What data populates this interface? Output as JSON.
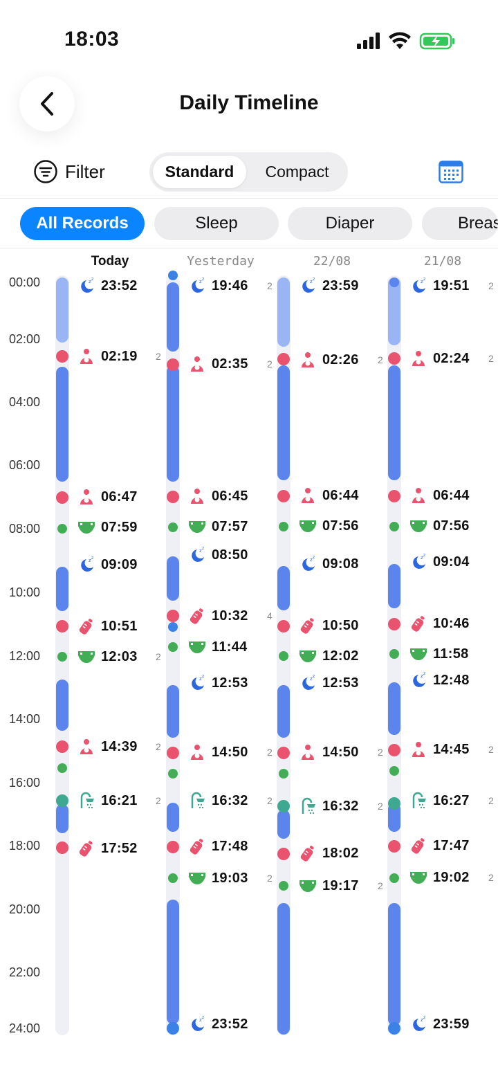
{
  "status_bar": {
    "time": "18:03"
  },
  "header": {
    "title": "Daily Timeline"
  },
  "toolbar": {
    "filter_label": "Filter",
    "view_standard": "Standard",
    "view_compact": "Compact"
  },
  "chips": [
    "All Records",
    "Sleep",
    "Diaper",
    "Breas"
  ],
  "hours": [
    "00:00",
    "02:00",
    "04:00",
    "06:00",
    "08:00",
    "10:00",
    "12:00",
    "14:00",
    "16:00",
    "18:00",
    "20:00",
    "22:00",
    "24:00"
  ],
  "days": [
    "Today",
    "Yesterday",
    "22/08",
    "21/08"
  ],
  "colors": {
    "sleep": "#5b85ec",
    "sleep_light": "#9ab5f5",
    "feeding": "#e9536e",
    "diaper": "#43ad55",
    "bath": "#3fa890",
    "accent": "#0a84ff"
  },
  "timeline": {
    "today": [
      {
        "time": "23:52",
        "type": "sleep-icon"
      },
      {
        "time": "02:19",
        "type": "breastfeed-icon",
        "count": "2"
      },
      {
        "time": "06:47",
        "type": "breastfeed-icon"
      },
      {
        "time": "07:59",
        "type": "diaper-icon"
      },
      {
        "time": "09:09",
        "type": "sleep-icon"
      },
      {
        "time": "10:51",
        "type": "bottle-icon"
      },
      {
        "time": "12:03",
        "type": "diaper-icon",
        "count": "2"
      },
      {
        "time": "14:39",
        "type": "breastfeed-icon",
        "count": "2"
      },
      {
        "time": "16:21",
        "type": "bath-icon",
        "count": "2"
      },
      {
        "time": "17:52",
        "type": "bottle-icon"
      }
    ],
    "yesterday": [
      {
        "time": "19:46",
        "type": "sleep-icon",
        "count": "2"
      },
      {
        "time": "02:35",
        "type": "breastfeed-icon",
        "count": "2"
      },
      {
        "time": "06:45",
        "type": "breastfeed-icon"
      },
      {
        "time": "07:57",
        "type": "diaper-icon"
      },
      {
        "time": "08:50",
        "type": "sleep-icon"
      },
      {
        "time": "10:32",
        "type": "bottle-icon",
        "count": "4"
      },
      {
        "time": "11:44",
        "type": "diaper-icon"
      },
      {
        "time": "12:53",
        "type": "sleep-icon"
      },
      {
        "time": "14:50",
        "type": "breastfeed-icon",
        "count": "2"
      },
      {
        "time": "16:32",
        "type": "bath-icon",
        "count": "2"
      },
      {
        "time": "17:48",
        "type": "bottle-icon"
      },
      {
        "time": "19:03",
        "type": "diaper-icon",
        "count": "2"
      },
      {
        "time": "23:52",
        "type": "sleep-icon"
      }
    ],
    "day_22_08": [
      {
        "time": "23:59",
        "type": "sleep-icon"
      },
      {
        "time": "02:26",
        "type": "breastfeed-icon",
        "count": "2"
      },
      {
        "time": "06:44",
        "type": "breastfeed-icon"
      },
      {
        "time": "07:56",
        "type": "diaper-icon"
      },
      {
        "time": "09:08",
        "type": "sleep-icon"
      },
      {
        "time": "10:50",
        "type": "bottle-icon"
      },
      {
        "time": "12:02",
        "type": "diaper-icon"
      },
      {
        "time": "12:53",
        "type": "sleep-icon"
      },
      {
        "time": "14:50",
        "type": "breastfeed-icon",
        "count": "2"
      },
      {
        "time": "16:32",
        "type": "bath-icon",
        "count": "2"
      },
      {
        "time": "18:02",
        "type": "bottle-icon"
      },
      {
        "time": "19:17",
        "type": "diaper-icon",
        "count": "2"
      }
    ],
    "day_21_08": [
      {
        "time": "19:51",
        "type": "sleep-icon",
        "count": "2"
      },
      {
        "time": "02:24",
        "type": "breastfeed-icon",
        "count": "2"
      },
      {
        "time": "06:44",
        "type": "breastfeed-icon"
      },
      {
        "time": "07:56",
        "type": "diaper-icon"
      },
      {
        "time": "09:04",
        "type": "sleep-icon"
      },
      {
        "time": "10:46",
        "type": "bottle-icon"
      },
      {
        "time": "11:58",
        "type": "diaper-icon"
      },
      {
        "time": "12:48",
        "type": "sleep-icon"
      },
      {
        "time": "14:45",
        "type": "breastfeed-icon",
        "count": "2"
      },
      {
        "time": "16:27",
        "type": "bath-icon",
        "count": "2"
      },
      {
        "time": "17:47",
        "type": "bottle-icon"
      },
      {
        "time": "19:02",
        "type": "diaper-icon",
        "count": "2"
      },
      {
        "time": "23:59",
        "type": "sleep-icon"
      }
    ]
  }
}
